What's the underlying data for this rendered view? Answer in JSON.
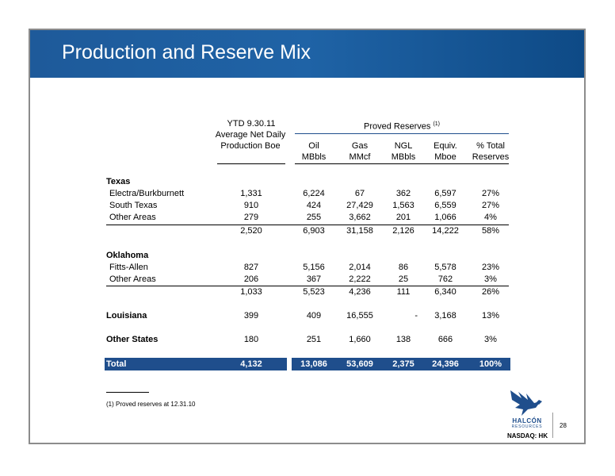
{
  "title": "Production and Reserve Mix",
  "headers": {
    "ytd_line1": "YTD 9.30.11",
    "ytd_line2": "Average Net Daily",
    "ytd_line3": "Production Boe",
    "proved": "Proved Reserves",
    "proved_sup": "(1)",
    "oil_1": "Oil",
    "oil_2": "MBbls",
    "gas_1": "Gas",
    "gas_2": "MMcf",
    "ngl_1": "NGL",
    "ngl_2": "MBbls",
    "equiv_1": "Equiv.",
    "equiv_2": "Mboe",
    "pct_1": "% Total",
    "pct_2": "Reserves"
  },
  "rows": {
    "texas": {
      "label": "Texas"
    },
    "electra": {
      "label": "Electra/Burkburnett",
      "prod": "1,331",
      "oil": "6,224",
      "gas": "67",
      "ngl": "362",
      "equiv": "6,597",
      "pct": "27%"
    },
    "south_texas": {
      "label": "South Texas",
      "prod": "910",
      "oil": "424",
      "gas": "27,429",
      "ngl": "1,563",
      "equiv": "6,559",
      "pct": "27%"
    },
    "tx_other": {
      "label": "Other Areas",
      "prod": "279",
      "oil": "255",
      "gas": "3,662",
      "ngl": "201",
      "equiv": "1,066",
      "pct": "4%"
    },
    "tx_sub": {
      "prod": "2,520",
      "oil": "6,903",
      "gas": "31,158",
      "ngl": "2,126",
      "equiv": "14,222",
      "pct": "58%"
    },
    "oklahoma": {
      "label": "Oklahoma"
    },
    "fitts": {
      "label": "Fitts-Allen",
      "prod": "827",
      "oil": "5,156",
      "gas": "2,014",
      "ngl": "86",
      "equiv": "5,578",
      "pct": "23%"
    },
    "ok_other": {
      "label": "Other Areas",
      "prod": "206",
      "oil": "367",
      "gas": "2,222",
      "ngl": "25",
      "equiv": "762",
      "pct": "3%"
    },
    "ok_sub": {
      "prod": "1,033",
      "oil": "5,523",
      "gas": "4,236",
      "ngl": "111",
      "equiv": "6,340",
      "pct": "26%"
    },
    "louisiana": {
      "label": "Louisiana",
      "prod": "399",
      "oil": "409",
      "gas": "16,555",
      "ngl": "-",
      "equiv": "3,168",
      "pct": "13%"
    },
    "other_states": {
      "label": "Other States",
      "prod": "180",
      "oil": "251",
      "gas": "1,660",
      "ngl": "138",
      "equiv": "666",
      "pct": "3%"
    },
    "total": {
      "label": "Total",
      "prod": "4,132",
      "oil": "13,086",
      "gas": "53,609",
      "ngl": "2,375",
      "equiv": "24,396",
      "pct": "100%"
    }
  },
  "footnote": "(1) Proved reserves at 12.31.10",
  "logo": {
    "name": "HALCÓN",
    "sub": "RESOURCES",
    "ticker": "NASDAQ: HK"
  },
  "page_number": "28",
  "colors": {
    "banner": "#1f63a6",
    "total_bar": "#1f4e8c"
  }
}
